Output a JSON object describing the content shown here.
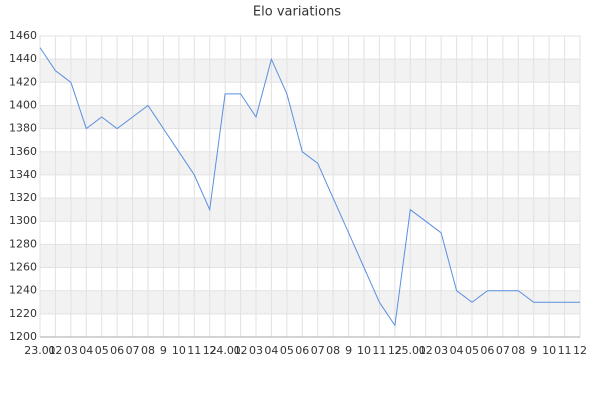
{
  "chart_data": {
    "type": "line",
    "title": "Elo variations",
    "categories": [
      "23.01",
      "02",
      "03",
      "04",
      "05",
      "06",
      "07",
      "08",
      "9",
      "10",
      "11",
      "12",
      "24.01",
      "02",
      "03",
      "04",
      "05",
      "06",
      "07",
      "08",
      "9",
      "10",
      "11",
      "12",
      "25.01",
      "02",
      "03",
      "04",
      "05",
      "06",
      "07",
      "08",
      "9",
      "10",
      "11",
      "12"
    ],
    "values": [
      1450,
      1430,
      1420,
      1380,
      1390,
      1380,
      1390,
      1400,
      1380,
      1360,
      1340,
      1310,
      1410,
      1410,
      1390,
      1440,
      1410,
      1360,
      1350,
      1320,
      1290,
      1260,
      1230,
      1210,
      1310,
      1300,
      1290,
      1240,
      1230,
      1240,
      1240,
      1240,
      1230,
      1230,
      1230,
      1230
    ],
    "color": "#5b8fe0",
    "ylim": [
      1200,
      1460
    ],
    "yticks": [
      1200,
      1220,
      1240,
      1260,
      1280,
      1300,
      1320,
      1340,
      1360,
      1380,
      1400,
      1420,
      1440,
      1460
    ],
    "grid": true
  }
}
